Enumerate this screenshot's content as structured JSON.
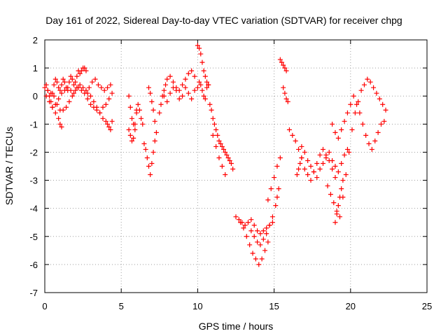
{
  "chart_data": {
    "type": "scatter",
    "title": "Day 161 of 2022, Sidereal Day-to-day VTEC variation (SDTVAR) for receiver chpg",
    "xlabel": "GPS time / hours",
    "ylabel": "SDTVAR / TECUs",
    "xlim": [
      0,
      25
    ],
    "ylim": [
      -7,
      2
    ],
    "xticks": [
      "0",
      "5",
      "10",
      "15",
      "20",
      "25"
    ],
    "yticks": [
      "2",
      "1",
      "0",
      "-1",
      "-2",
      "-3",
      "-4",
      "-5",
      "-6",
      "-7"
    ],
    "grid": true,
    "marker": "+",
    "color": "#ff0000",
    "series": [
      {
        "name": "SDTVAR",
        "x": [
          0.0,
          0.1,
          0.2,
          0.3,
          0.4,
          0.5,
          0.6,
          0.7,
          0.8,
          0.9,
          1.0,
          1.1,
          1.2,
          1.3,
          1.4,
          1.5,
          1.6,
          1.7,
          1.8,
          1.9,
          2.0,
          2.1,
          2.2,
          2.3,
          2.4,
          2.5,
          2.6,
          2.7,
          0.1,
          0.3,
          0.5,
          0.7,
          0.9,
          1.1,
          1.3,
          1.5,
          1.7,
          1.9,
          2.1,
          2.3,
          2.5,
          2.7,
          2.9,
          3.1,
          3.3,
          3.5,
          3.7,
          3.9,
          4.1,
          4.3,
          0.2,
          0.4,
          0.6,
          0.8,
          1.0,
          1.2,
          1.4,
          1.6,
          1.8,
          2.0,
          2.2,
          2.4,
          2.6,
          2.8,
          3.0,
          3.2,
          3.4,
          3.6,
          3.8,
          4.0,
          4.2,
          4.4,
          0.5,
          0.7,
          0.9,
          1.0,
          1.1,
          2.8,
          3.0,
          3.2,
          3.4,
          3.6,
          3.8,
          4.0,
          4.1,
          4.2,
          4.3,
          4.4,
          5.5,
          5.6,
          5.7,
          5.8,
          5.9,
          6.0,
          6.1,
          6.2,
          6.3,
          6.4,
          5.5,
          5.6,
          5.7,
          5.8,
          5.9,
          6.0,
          6.5,
          6.6,
          6.7,
          6.8,
          6.9,
          7.0,
          7.1,
          7.2,
          7.3,
          6.8,
          6.9,
          7.0,
          7.1,
          7.2,
          7.5,
          7.6,
          7.7,
          7.8,
          7.9,
          8.0,
          8.2,
          8.4,
          8.6,
          8.8,
          9.0,
          9.2,
          9.4,
          9.6,
          9.8,
          7.8,
          8.0,
          8.2,
          8.4,
          8.6,
          8.8,
          9.0,
          9.2,
          9.4,
          9.6,
          9.8,
          10.0,
          10.1,
          10.2,
          10.3,
          10.4,
          10.5,
          10.6,
          10.7,
          10.0,
          10.1,
          10.2,
          10.3,
          10.4,
          10.5,
          10.6,
          10.7,
          10.8,
          10.9,
          11.0,
          11.1,
          11.2,
          11.3,
          11.4,
          11.5,
          11.6,
          11.7,
          11.8,
          11.9,
          12.0,
          12.1,
          12.2,
          12.3,
          11.0,
          11.2,
          11.4,
          11.6,
          11.8,
          12.5,
          12.7,
          12.9,
          13.1,
          13.3,
          13.5,
          13.7,
          13.9,
          14.1,
          14.3,
          14.5,
          14.7,
          14.9,
          12.8,
          13.0,
          13.2,
          13.4,
          13.6,
          13.8,
          14.0,
          14.2,
          14.4,
          14.6,
          13.5,
          13.7,
          13.9,
          14.1,
          14.3,
          14.5,
          14.7,
          14.9,
          15.1,
          15.2,
          15.3,
          14.6,
          14.8,
          15.0,
          15.2,
          15.4,
          15.4,
          15.5,
          15.6,
          15.7,
          15.8,
          15.6,
          15.7,
          15.8,
          15.9,
          16.0,
          16.2,
          16.4,
          16.6,
          16.8,
          16.8,
          17.0,
          17.2,
          17.4,
          17.6,
          17.8,
          18.0,
          18.2,
          18.4,
          18.6,
          18.8,
          19.0,
          19.2,
          19.4,
          19.6,
          19.8,
          17.0,
          17.2,
          17.4,
          17.6,
          17.8,
          18.0,
          18.2,
          18.4,
          18.6,
          18.8,
          19.0,
          18.5,
          18.7,
          18.9,
          19.1,
          19.3,
          19.5,
          19.7,
          19.9,
          20.1,
          20.3,
          20.5,
          20.7,
          20.9,
          21.1,
          21.3,
          21.5,
          21.7,
          21.9,
          22.1,
          22.3,
          18.8,
          19.0,
          19.2,
          19.4,
          19.6,
          19.8,
          20.0,
          20.2,
          20.4,
          20.6,
          20.8,
          21.0,
          21.2,
          21.4,
          21.6,
          21.8,
          22.0,
          22.2,
          19.0,
          19.1,
          19.2,
          19.3,
          19.4,
          19.5,
          16.5,
          16.6,
          16.7,
          16.8
        ],
        "y": [
          0.3,
          0.4,
          0.2,
          0.0,
          -0.2,
          0.1,
          0.4,
          0.6,
          0.5,
          0.3,
          0.2,
          0.4,
          0.6,
          0.5,
          0.3,
          0.2,
          0.5,
          0.7,
          0.6,
          0.4,
          0.5,
          0.7,
          0.9,
          0.8,
          0.9,
          1.0,
          1.0,
          0.9,
          0.0,
          -0.2,
          -0.4,
          -0.3,
          -0.1,
          0.1,
          0.2,
          0.3,
          0.2,
          0.1,
          0.3,
          0.4,
          0.3,
          0.2,
          0.3,
          0.5,
          0.6,
          0.4,
          0.3,
          0.2,
          0.3,
          0.4,
          0.2,
          0.1,
          0.0,
          -0.3,
          -0.5,
          -0.5,
          -0.4,
          -0.2,
          0.0,
          0.2,
          0.3,
          0.2,
          0.1,
          -0.1,
          -0.3,
          -0.4,
          -0.5,
          -0.6,
          -0.4,
          -0.3,
          -0.1,
          0.1,
          -0.4,
          -0.6,
          -0.8,
          -1.0,
          -1.1,
          0.1,
          0.0,
          -0.2,
          -0.4,
          -0.6,
          -0.8,
          -0.9,
          -1.0,
          -1.1,
          -1.2,
          -0.9,
          0.0,
          -0.4,
          -0.8,
          -1.0,
          -1.2,
          -0.6,
          -0.3,
          -0.5,
          -0.8,
          -1.0,
          -1.2,
          -1.4,
          -1.6,
          -1.5,
          -1.0,
          -0.5,
          -1.7,
          -1.9,
          -2.2,
          -2.5,
          -2.8,
          -2.4,
          -2.0,
          -1.6,
          -1.3,
          0.3,
          0.1,
          -0.2,
          -0.5,
          -0.9,
          -0.6,
          -0.3,
          0.0,
          0.2,
          0.4,
          0.6,
          0.7,
          0.5,
          0.3,
          0.2,
          0.4,
          0.6,
          0.8,
          0.9,
          0.7,
          0.0,
          -0.2,
          0.1,
          0.3,
          0.2,
          -0.1,
          0.0,
          0.3,
          0.1,
          -0.1,
          0.2,
          1.8,
          1.7,
          1.5,
          1.2,
          0.9,
          0.7,
          0.5,
          0.4,
          0.3,
          0.5,
          0.4,
          0.2,
          0.0,
          -0.1,
          0.3,
          0.4,
          -0.3,
          -0.5,
          -0.8,
          -1.0,
          -1.2,
          -1.4,
          -1.6,
          -1.7,
          -1.8,
          -1.9,
          -2.0,
          -2.1,
          -2.2,
          -2.3,
          -2.4,
          -2.6,
          -1.4,
          -1.8,
          -2.2,
          -2.5,
          -2.8,
          -4.3,
          -4.4,
          -4.5,
          -4.6,
          -4.5,
          -4.4,
          -4.6,
          -4.8,
          -4.9,
          -4.8,
          -4.7,
          -4.6,
          -4.5,
          -4.5,
          -4.7,
          -5.0,
          -5.3,
          -5.6,
          -5.8,
          -6.0,
          -5.8,
          -5.5,
          -5.2,
          -4.8,
          -5.0,
          -5.2,
          -5.3,
          -5.1,
          -4.9,
          -4.6,
          -4.3,
          -3.9,
          -3.6,
          -3.3,
          -3.7,
          -3.3,
          -2.9,
          -2.5,
          -2.2,
          1.3,
          1.2,
          1.1,
          1.0,
          0.9,
          0.3,
          0.1,
          -0.1,
          -0.2,
          -1.2,
          -1.4,
          -1.6,
          -1.9,
          -2.2,
          -1.8,
          -2.0,
          -2.3,
          -2.5,
          -2.7,
          -2.9,
          -2.6,
          -2.4,
          -2.2,
          -2.0,
          -2.3,
          -2.5,
          -2.7,
          -2.4,
          -2.1,
          -1.9,
          -2.6,
          -2.8,
          -3.0,
          -2.7,
          -2.4,
          -2.1,
          -1.9,
          -2.1,
          -2.3,
          -2.6,
          -2.9,
          -3.2,
          -3.5,
          -3.8,
          -4.1,
          -4.3,
          -3.6,
          -2.8,
          -2.0,
          -1.2,
          -0.6,
          -0.2,
          0.2,
          0.4,
          0.6,
          0.5,
          0.3,
          0.1,
          -0.1,
          -0.3,
          -0.5,
          -1.0,
          -1.3,
          -1.5,
          -1.2,
          -0.9,
          -0.6,
          -0.3,
          0.0,
          -0.3,
          -0.6,
          -1.0,
          -1.4,
          -1.7,
          -1.9,
          -1.6,
          -1.3,
          -1.0,
          -0.9,
          -4.5,
          -4.2,
          -3.9,
          -3.6,
          -3.3,
          -3.0,
          -2.8,
          -2.6,
          -2.4,
          -2.2
        ]
      }
    ]
  }
}
